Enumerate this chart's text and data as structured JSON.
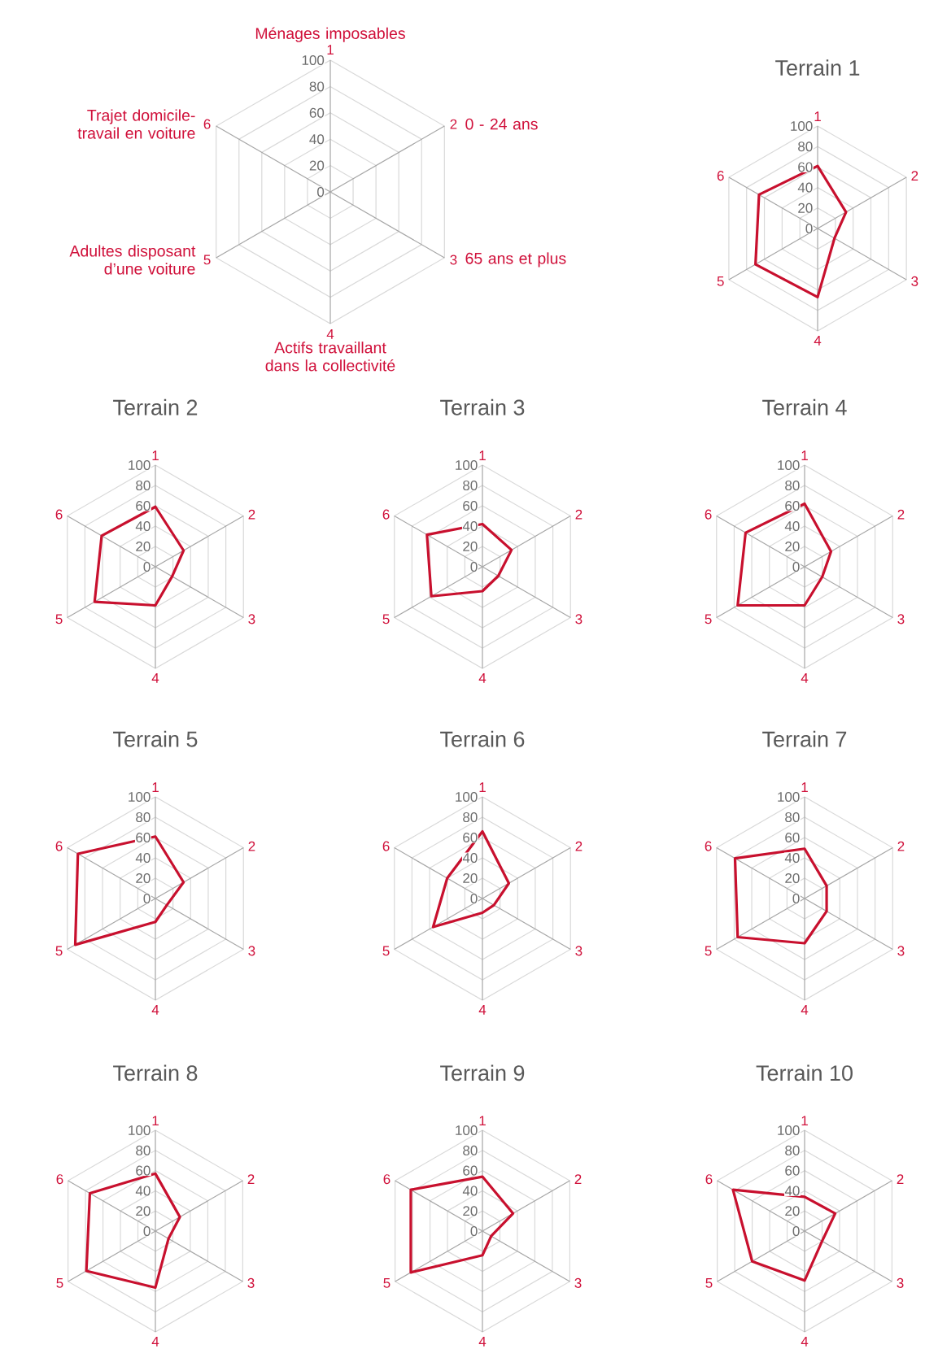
{
  "chart_data": [
    {
      "type": "radar",
      "categories": [
        "1",
        "2",
        "3",
        "4",
        "5",
        "6"
      ],
      "ylim": [
        0,
        100
      ],
      "yticks": [
        0,
        20,
        40,
        60,
        80,
        100
      ],
      "annotations": [
        "Ménages imposables",
        "0 - 24 ans",
        "65 ans et plus",
        "Actifs travaillant dans la collectivité",
        "Adultes disposant d’une voiture",
        "Trajet domicile-travail en voiture"
      ]
    },
    {
      "type": "radar",
      "title": "Terrain 1",
      "categories": [
        "1",
        "2",
        "3",
        "4",
        "5",
        "6"
      ],
      "ylim": [
        0,
        100
      ],
      "yticks": [
        0,
        20,
        40,
        60,
        80,
        100
      ],
      "series": [
        {
          "color": "#c8102e",
          "values": [
            61,
            32,
            19,
            67,
            70,
            66
          ]
        }
      ]
    },
    {
      "type": "radar",
      "title": "Terrain 2",
      "categories": [
        "1",
        "2",
        "3",
        "4",
        "5",
        "6"
      ],
      "ylim": [
        0,
        100
      ],
      "yticks": [
        0,
        20,
        40,
        60,
        80,
        100
      ],
      "series": [
        {
          "color": "#c8102e",
          "values": [
            59,
            32,
            19,
            38,
            69,
            61
          ]
        }
      ]
    },
    {
      "type": "radar",
      "title": "Terrain 3",
      "categories": [
        "1",
        "2",
        "3",
        "4",
        "5",
        "6"
      ],
      "ylim": [
        0,
        100
      ],
      "yticks": [
        0,
        20,
        40,
        60,
        80,
        100
      ],
      "series": [
        {
          "color": "#c8102e",
          "values": [
            42,
            33,
            18,
            24,
            58,
            63
          ]
        }
      ]
    },
    {
      "type": "radar",
      "title": "Terrain 4",
      "categories": [
        "1",
        "2",
        "3",
        "4",
        "5",
        "6"
      ],
      "ylim": [
        0,
        100
      ],
      "yticks": [
        0,
        20,
        40,
        60,
        80,
        100
      ],
      "series": [
        {
          "color": "#c8102e",
          "values": [
            62,
            30,
            20,
            38,
            76,
            67
          ]
        }
      ]
    },
    {
      "type": "radar",
      "title": "Terrain 5",
      "categories": [
        "1",
        "2",
        "3",
        "4",
        "5",
        "6"
      ],
      "ylim": [
        0,
        100
      ],
      "yticks": [
        0,
        20,
        40,
        60,
        80,
        100
      ],
      "series": [
        {
          "color": "#c8102e",
          "values": [
            61,
            32,
            13,
            23,
            91,
            88
          ]
        }
      ]
    },
    {
      "type": "radar",
      "title": "Terrain 6",
      "categories": [
        "1",
        "2",
        "3",
        "4",
        "5",
        "6"
      ],
      "ylim": [
        0,
        100
      ],
      "yticks": [
        0,
        20,
        40,
        60,
        80,
        100
      ],
      "series": [
        {
          "color": "#c8102e",
          "values": [
            66,
            30,
            13,
            14,
            56,
            40
          ]
        }
      ]
    },
    {
      "type": "radar",
      "title": "Terrain 7",
      "categories": [
        "1",
        "2",
        "3",
        "4",
        "5",
        "6"
      ],
      "ylim": [
        0,
        100
      ],
      "yticks": [
        0,
        20,
        40,
        60,
        80,
        100
      ],
      "series": [
        {
          "color": "#c8102e",
          "values": [
            49,
            25,
            25,
            44,
            76,
            79
          ]
        }
      ]
    },
    {
      "type": "radar",
      "title": "Terrain 8",
      "categories": [
        "1",
        "2",
        "3",
        "4",
        "5",
        "6"
      ],
      "ylim": [
        0,
        100
      ],
      "yticks": [
        0,
        20,
        40,
        60,
        80,
        100
      ],
      "series": [
        {
          "color": "#c8102e",
          "values": [
            57,
            28,
            15,
            56,
            79,
            75
          ]
        }
      ]
    },
    {
      "type": "radar",
      "title": "Terrain 9",
      "categories": [
        "1",
        "2",
        "3",
        "4",
        "5",
        "6"
      ],
      "ylim": [
        0,
        100
      ],
      "yticks": [
        0,
        20,
        40,
        60,
        80,
        100
      ],
      "series": [
        {
          "color": "#c8102e",
          "values": [
            54,
            35,
            10,
            24,
            82,
            82
          ]
        }
      ]
    },
    {
      "type": "radar",
      "title": "Terrain 10",
      "categories": [
        "1",
        "2",
        "3",
        "4",
        "5",
        "6"
      ],
      "ylim": [
        0,
        100
      ],
      "yticks": [
        0,
        20,
        40,
        60,
        80,
        100
      ],
      "series": [
        {
          "color": "#c8102e",
          "values": [
            34,
            35,
            20,
            49,
            60,
            82
          ]
        }
      ]
    }
  ]
}
